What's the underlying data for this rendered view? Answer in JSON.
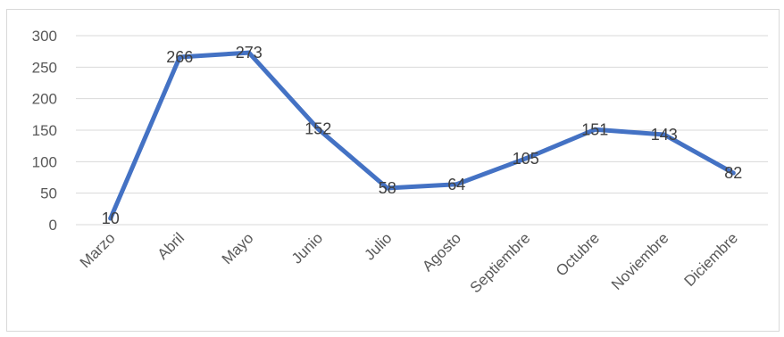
{
  "chart_data": {
    "type": "line",
    "title": "",
    "xlabel": "",
    "ylabel": "",
    "categories": [
      "Marzo",
      "Abril",
      "Mayo",
      "Junio",
      "Julio",
      "Agosto",
      "Septiembre",
      "Octubre",
      "Noviembre",
      "Diciembre"
    ],
    "series": [
      {
        "values": [
          10,
          266,
          273,
          152,
          58,
          64,
          105,
          151,
          143,
          82
        ],
        "color": "#4472c4"
      }
    ],
    "ylim": [
      0,
      300
    ],
    "yticks": [
      "0",
      "50",
      "100",
      "150",
      "200",
      "250",
      "300"
    ],
    "data_labels": [
      "10",
      "266",
      "273",
      "152",
      "58",
      "64",
      "105",
      "151",
      "143",
      "82"
    ],
    "grid": true,
    "legend": "none"
  }
}
